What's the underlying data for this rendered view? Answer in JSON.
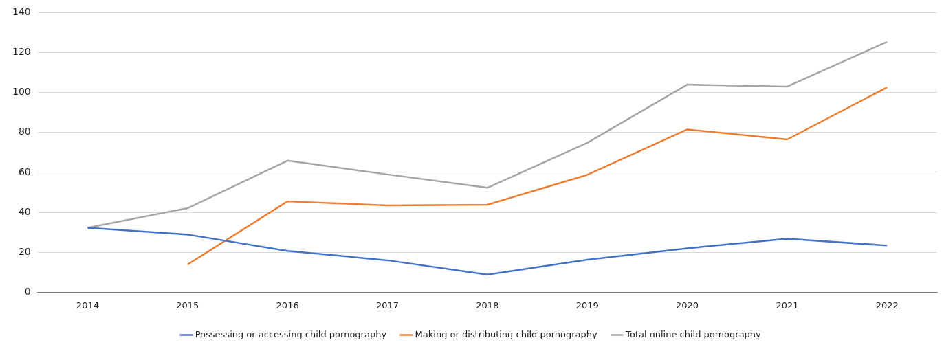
{
  "chart_data": {
    "type": "line",
    "categories": [
      "2014",
      "2015",
      "2016",
      "2017",
      "2018",
      "2019",
      "2020",
      "2021",
      "2022"
    ],
    "series": [
      {
        "name": "Possessing or accessing child pornography",
        "color": "#4472c4",
        "values": [
          32.3,
          28.9,
          20.7,
          16,
          8.8,
          16.3,
          22,
          26.8,
          23.4
        ]
      },
      {
        "name": "Making or distributing child pornography",
        "color": "#ed7d31",
        "values": [
          null,
          13.9,
          45.5,
          43.5,
          43.8,
          58.8,
          81.5,
          76.5,
          102.6
        ]
      },
      {
        "name": "Total online child pornography",
        "color": "#a5a5a5",
        "values": [
          32.3,
          42.1,
          65.9,
          59,
          52.3,
          74.8,
          104,
          103,
          125.4
        ]
      }
    ],
    "ylim": [
      0,
      140
    ],
    "yticks": [
      0,
      20,
      40,
      60,
      80,
      100,
      120,
      140
    ],
    "grid": "y",
    "legend": "bottom",
    "marker": "none",
    "line_style": "solid"
  }
}
